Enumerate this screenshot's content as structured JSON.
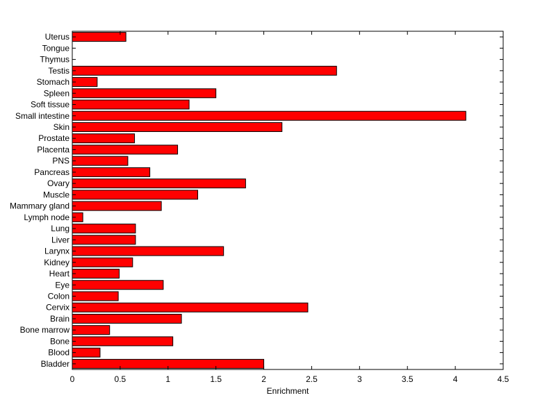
{
  "chart_data": {
    "type": "bar",
    "orientation": "horizontal",
    "categories": [
      "Bladder",
      "Blood",
      "Bone",
      "Bone marrow",
      "Brain",
      "Cervix",
      "Colon",
      "Eye",
      "Heart",
      "Kidney",
      "Larynx",
      "Liver",
      "Lung",
      "Lymph node",
      "Mammary gland",
      "Muscle",
      "Ovary",
      "Pancreas",
      "PNS",
      "Placenta",
      "Prostate",
      "Skin",
      "Small intestine",
      "Soft tissue",
      "Spleen",
      "Stomach",
      "Testis",
      "Thymus",
      "Tongue",
      "Uterus"
    ],
    "values": [
      2.0,
      0.29,
      1.05,
      0.39,
      1.14,
      2.46,
      0.48,
      0.95,
      0.49,
      0.63,
      1.58,
      0.66,
      0.66,
      0.11,
      0.93,
      1.31,
      1.81,
      0.81,
      0.58,
      1.1,
      0.65,
      2.19,
      4.11,
      1.22,
      1.5,
      0.26,
      2.76,
      0.0,
      0.0,
      0.56
    ],
    "xlabel": "Enrichment",
    "ylabel": "",
    "title": "",
    "xlim": [
      0,
      4.5
    ],
    "xticks": [
      "0",
      "0.5",
      "1",
      "1.5",
      "2",
      "2.5",
      "3",
      "3.5",
      "4",
      "4.5"
    ],
    "grid": false,
    "legend": "none",
    "bar_color": "#ff0000",
    "bar_edge_color": "#000000"
  }
}
